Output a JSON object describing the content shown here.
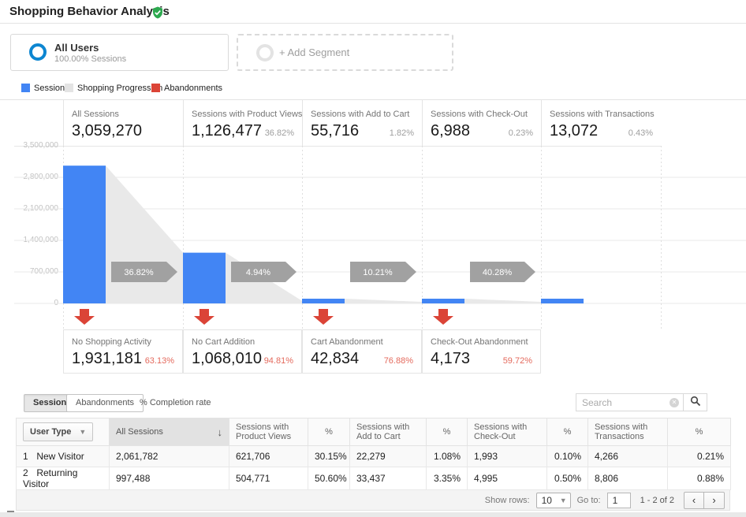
{
  "header": {
    "title": "Shopping Behavior Analysis"
  },
  "segments": {
    "all_users": {
      "label": "All Users",
      "sublabel": "100.00% Sessions"
    },
    "add_segment": {
      "label": "+ Add Segment"
    }
  },
  "legend": {
    "items": [
      {
        "label": "Sessions",
        "color": "#4285f4"
      },
      {
        "label": "Shopping Progression",
        "color": "#e4e4e4"
      },
      {
        "label": "Abandonments",
        "color": "#db4437"
      }
    ]
  },
  "colors": {
    "bar_blue": "#4285f4",
    "progression_gray": "#e9e9e9",
    "arrow_gray": "#a1a1a1",
    "abandon_red": "#db4437",
    "grid": "#e8e8e8"
  },
  "chart_data": {
    "type": "bar",
    "title": "Shopping Behavior Analysis funnel",
    "stages": [
      {
        "label": "All Sessions",
        "value": 3059270,
        "value_text": "3,059,270",
        "pct_text": ""
      },
      {
        "label": "Sessions with Product Views",
        "value": 1126477,
        "value_text": "1,126,477",
        "pct_text": "36.82%"
      },
      {
        "label": "Sessions with Add to Cart",
        "value": 55716,
        "value_text": "55,716",
        "pct_text": "1.82%"
      },
      {
        "label": "Sessions with Check-Out",
        "value": 6988,
        "value_text": "6,988",
        "pct_text": "0.23%"
      },
      {
        "label": "Sessions with Transactions",
        "value": 13072,
        "value_text": "13,072",
        "pct_text": "0.43%"
      }
    ],
    "progression_pcts": [
      "36.82%",
      "4.94%",
      "10.21%",
      "40.28%"
    ],
    "abandonments": [
      {
        "label": "No Shopping Activity",
        "value": 1931181,
        "value_text": "1,931,181",
        "pct_text": "63.13%"
      },
      {
        "label": "No Cart Addition",
        "value": 1068010,
        "value_text": "1,068,010",
        "pct_text": "94.81%"
      },
      {
        "label": "Cart Abandonment",
        "value": 42834,
        "value_text": "42,834",
        "pct_text": "76.88%"
      },
      {
        "label": "Check-Out Abandonment",
        "value": 4173,
        "value_text": "4,173",
        "pct_text": "59.72%"
      }
    ],
    "y_axis": {
      "max": 3500000,
      "ticks": [
        "3,500,000",
        "2,800,000",
        "2,100,000",
        "1,400,000",
        "700,000",
        "0"
      ]
    }
  },
  "table": {
    "tabs": [
      "Sessions",
      "Abandonments"
    ],
    "toggle_label": "% Completion rate",
    "search_placeholder": "Search",
    "columns": [
      "User Type",
      "All Sessions",
      "Sessions with Product Views",
      "%",
      "Sessions with Add to Cart",
      "%",
      "Sessions with Check-Out",
      "%",
      "Sessions with Transactions",
      "%"
    ],
    "rows": [
      {
        "index": "1",
        "user_type": "New Visitor",
        "all_sessions": "2,061,782",
        "product_views": "621,706",
        "product_views_pct": "30.15%",
        "add_to_cart": "22,279",
        "add_to_cart_pct": "1.08%",
        "check_out": "1,993",
        "check_out_pct": "0.10%",
        "transactions": "4,266",
        "transactions_pct": "0.21%"
      },
      {
        "index": "2",
        "user_type": "Returning Visitor",
        "all_sessions": "997,488",
        "product_views": "504,771",
        "product_views_pct": "50.60%",
        "add_to_cart": "33,437",
        "add_to_cart_pct": "3.35%",
        "check_out": "4,995",
        "check_out_pct": "0.50%",
        "transactions": "8,806",
        "transactions_pct": "0.88%"
      }
    ],
    "footer": {
      "show_rows_label": "Show rows:",
      "show_rows_value": "10",
      "goto_label": "Go to:",
      "goto_value": "1",
      "range": "1 - 2 of 2"
    }
  }
}
